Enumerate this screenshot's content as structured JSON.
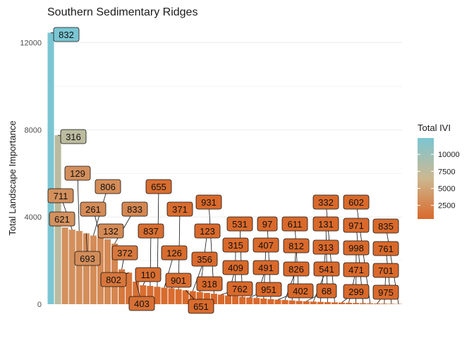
{
  "chart_data": {
    "type": "bar",
    "title": "Southern Sedimentary Ridges",
    "xlabel": "",
    "ylabel": "Total Landscape Importance",
    "ylim": [
      0,
      12400
    ],
    "yticks": [
      0,
      4000,
      8000,
      12000
    ],
    "grid": true,
    "legend": {
      "title": "Total IVI",
      "placement": "right",
      "ticks": [
        2500,
        5000,
        7500,
        10000
      ],
      "range": [
        500,
        12400
      ],
      "colors": {
        "low": "#D9692B",
        "mid": "#CDB890",
        "high": "#7BC6D3"
      }
    },
    "bars": [
      {
        "label": "832",
        "value": 12450
      },
      {
        "label": "316",
        "value": 7750
      },
      {
        "label": "621",
        "value": 3520
      },
      {
        "label": "711",
        "value": 3420
      },
      {
        "label": "129",
        "value": 3360
      },
      {
        "label": "693",
        "value": 3250
      },
      {
        "label": "806",
        "value": 3150
      },
      {
        "label": "261",
        "value": 3080
      },
      {
        "label": "132",
        "value": 2980
      },
      {
        "label": "833",
        "value": 2780
      },
      {
        "label": "372",
        "value": 1600
      },
      {
        "label": "802",
        "value": 1450
      },
      {
        "label": "403",
        "value": 1040
      },
      {
        "label": "110",
        "value": 870
      },
      {
        "label": "837",
        "value": 840
      },
      {
        "label": "655",
        "value": 800
      },
      {
        "label": "126",
        "value": 760
      },
      {
        "label": "901",
        "value": 730
      },
      {
        "label": "371",
        "value": 690
      },
      {
        "label": "651",
        "value": 640
      },
      {
        "label": "356",
        "value": 600
      },
      {
        "label": "123",
        "value": 560
      },
      {
        "label": "318",
        "value": 520
      },
      {
        "label": "931",
        "value": 480
      },
      {
        "label": "762",
        "value": 440
      },
      {
        "label": "409",
        "value": 400
      },
      {
        "label": "315",
        "value": 370
      },
      {
        "label": "531",
        "value": 340
      },
      {
        "label": "951",
        "value": 310
      },
      {
        "label": "491",
        "value": 285
      },
      {
        "label": "407",
        "value": 260
      },
      {
        "label": "97",
        "value": 235
      },
      {
        "label": "402",
        "value": 210
      },
      {
        "label": "826",
        "value": 190
      },
      {
        "label": "812",
        "value": 170
      },
      {
        "label": "611",
        "value": 150
      },
      {
        "label": "68",
        "value": 135
      },
      {
        "label": "541",
        "value": 120
      },
      {
        "label": "313",
        "value": 105
      },
      {
        "label": "131",
        "value": 95
      },
      {
        "label": "332",
        "value": 85
      },
      {
        "label": "299",
        "value": 75
      },
      {
        "label": "471",
        "value": 65
      },
      {
        "label": "998",
        "value": 58
      },
      {
        "label": "971",
        "value": 50
      },
      {
        "label": "602",
        "value": 42
      },
      {
        "label": "975",
        "value": 35
      },
      {
        "label": "701",
        "value": 28
      },
      {
        "label": "761",
        "value": 22
      },
      {
        "label": "835",
        "value": 15
      }
    ]
  }
}
